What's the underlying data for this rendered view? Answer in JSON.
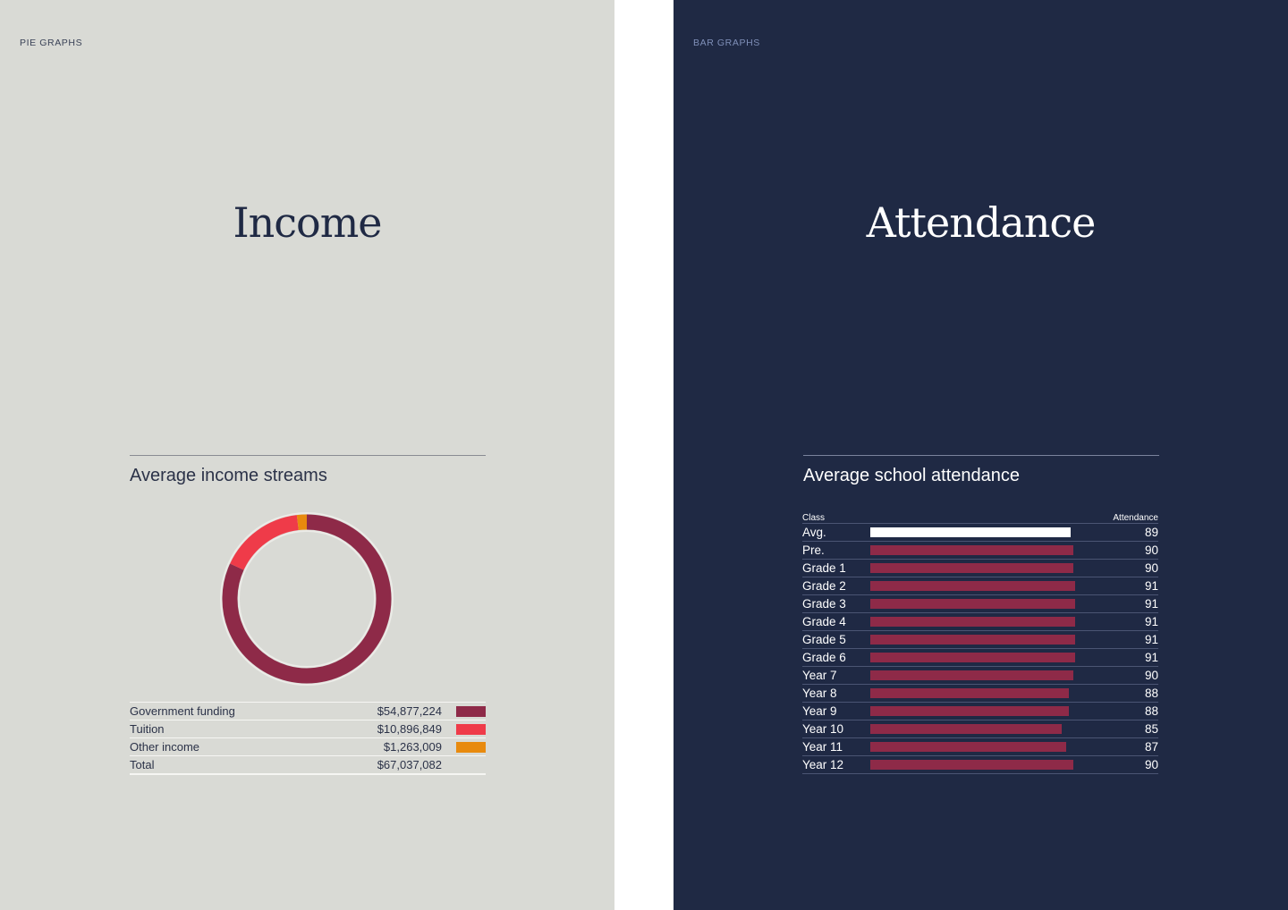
{
  "left_page": {
    "section_label": "PIE GRAPHS",
    "title": "Income",
    "chart_title": "Average income streams"
  },
  "right_page": {
    "section_label": "BAR GRAPHS",
    "title": "Attendance",
    "chart_title": "Average school attendance",
    "column_class": "Class",
    "column_attendance": "Attendance"
  },
  "chart_data": [
    {
      "type": "pie",
      "title": "Average income streams",
      "donut": true,
      "slices": [
        {
          "label": "Government funding",
          "display": "$54,877,224",
          "value": 54877224,
          "color": "#8e2a48"
        },
        {
          "label": "Tuition",
          "display": "$10,896,849",
          "value": 10896849,
          "color": "#ef3b49"
        },
        {
          "label": "Other income",
          "display": "$1,263,009",
          "value": 1263009,
          "color": "#e88a0e"
        }
      ],
      "total": {
        "label": "Total",
        "display": "$67,037,082",
        "value": 67037082
      }
    },
    {
      "type": "bar",
      "orientation": "horizontal",
      "title": "Average school attendance",
      "categories": [
        "Avg.",
        "Pre.",
        "Grade 1",
        "Grade 2",
        "Grade 3",
        "Grade 4",
        "Grade 5",
        "Grade 6",
        "Year 7",
        "Year 8",
        "Year 9",
        "Year 10",
        "Year 11",
        "Year 12"
      ],
      "values": [
        89,
        90,
        90,
        91,
        91,
        91,
        91,
        91,
        90,
        88,
        88,
        85,
        87,
        90
      ],
      "colors": {
        "average": "#ffffff",
        "default": "#8e2a48"
      },
      "xlim": [
        0,
        100
      ]
    }
  ]
}
